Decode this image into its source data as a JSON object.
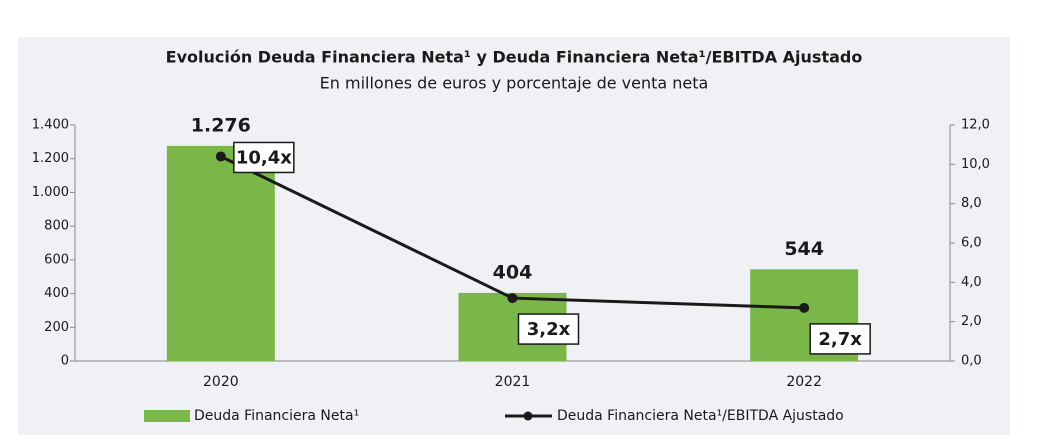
{
  "chart_data": {
    "type": "bar",
    "title": "Evolución Deuda Financiera Neta¹ y Deuda Financiera Neta¹/EBITDA Ajustado",
    "subtitle": "En millones de euros y porcentaje de venta neta",
    "categories": [
      "2020",
      "2021",
      "2022"
    ],
    "series": [
      {
        "name": "Deuda Financiera Neta¹",
        "type": "bar",
        "color": "#7ab648",
        "values": [
          1276,
          404,
          544
        ],
        "value_labels": [
          "1.276",
          "404",
          "544"
        ]
      },
      {
        "name": "Deuda Financiera Neta¹/EBITDA Ajustado",
        "type": "line",
        "axis": "y2",
        "color": "#1a1a1a",
        "values": [
          10.4,
          3.2,
          2.7
        ],
        "value_labels": [
          "10,4x",
          "3,2x",
          "2,7x"
        ]
      }
    ],
    "ylim": [
      0,
      1400
    ],
    "yticks": [
      0,
      200,
      400,
      600,
      800,
      {
        "value": 1000,
        "label": "1.000"
      },
      {
        "value": 1200,
        "label": "1.200"
      },
      {
        "value": 1400,
        "label": "1.400"
      }
    ],
    "y2lim": [
      0,
      12
    ],
    "y2ticks": [
      {
        "value": 0,
        "label": "0,0"
      },
      {
        "value": 2,
        "label": "2,0"
      },
      {
        "value": 4,
        "label": "4,0"
      },
      {
        "value": 6,
        "label": "6,0"
      },
      {
        "value": 8,
        "label": "8,0"
      },
      {
        "value": 10,
        "label": "10,0"
      },
      {
        "value": 12,
        "label": "12,0"
      }
    ],
    "legend": "bottom"
  }
}
